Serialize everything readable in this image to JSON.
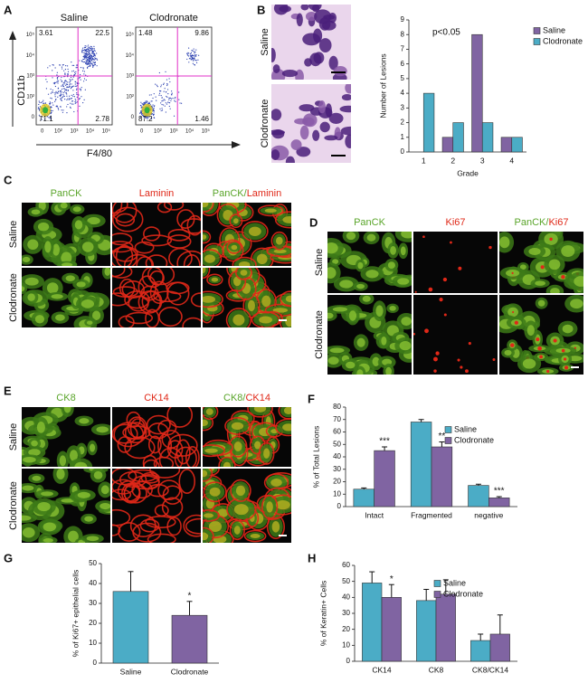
{
  "figure": {
    "A": {
      "panel": "A",
      "plots": [
        {
          "title": "Saline",
          "quadrants": [
            "3.61",
            "22.5",
            "71.1",
            "2.78"
          ]
        },
        {
          "title": "Clodronate",
          "quadrants": [
            "1.48",
            "9.86",
            "87.2",
            "1.46"
          ]
        }
      ],
      "y_label": "CD11b",
      "x_label": "F4/80",
      "ticks": [
        "0",
        "10²",
        "10³",
        "10⁴",
        "10⁵"
      ]
    },
    "B": {
      "panel": "B",
      "rows": [
        "Saline",
        "Clodronate"
      ]
    },
    "C": {
      "panel": "C",
      "columns": [
        "PanCK",
        "Laminin"
      ],
      "merged": [
        "PanCK/",
        "Laminin"
      ],
      "rows": [
        "Saline",
        "Clodronate"
      ]
    },
    "D": {
      "panel": "D",
      "columns": [
        "PanCK",
        "Ki67"
      ],
      "merged": [
        "PanCK/",
        "Ki67"
      ],
      "rows": [
        "Saline",
        "Clodronate"
      ]
    },
    "E": {
      "panel": "E",
      "columns": [
        "CK8",
        "CK14"
      ],
      "merged": [
        "CK8/",
        "CK14"
      ],
      "rows": [
        "Saline",
        "Clodronate"
      ]
    }
  },
  "chart_data": [
    {
      "type": "bar",
      "categories": [
        "1",
        "2",
        "3",
        "4"
      ],
      "series": [
        {
          "name": "Saline",
          "color": "#8064a2",
          "values": [
            0,
            1,
            8,
            1
          ]
        },
        {
          "name": "Clodronate",
          "color": "#4bacc6",
          "values": [
            4,
            2,
            2,
            1
          ]
        }
      ],
      "ylim": [
        0,
        9
      ],
      "yticks": [
        0,
        1,
        2,
        3,
        4,
        5,
        6,
        7,
        8,
        9
      ],
      "x_label": "Grade",
      "y_label": "Number of Lesions",
      "note": "p<0.05",
      "legend": "upper right"
    },
    {
      "type": "bar",
      "panel": "F",
      "categories": [
        "Intact",
        "Fragmented",
        "negative"
      ],
      "series": [
        {
          "name": "Saline",
          "color": "#4bacc6",
          "values": [
            14,
            68,
            17
          ],
          "errors": [
            1,
            2,
            1
          ]
        },
        {
          "name": "Clodronate",
          "color": "#8064a2",
          "values": [
            45,
            48,
            7
          ],
          "errors": [
            3,
            4,
            1
          ]
        }
      ],
      "ylim": [
        0,
        80
      ],
      "yticks": [
        0,
        10,
        20,
        30,
        40,
        50,
        60,
        70,
        80
      ],
      "y_label": "% of Total Lesions",
      "annotations": [
        {
          "text": "***",
          "category": "Intact",
          "series": "Clodronate"
        },
        {
          "text": "**",
          "category": "Fragmented",
          "series": "Clodronate"
        },
        {
          "text": "***",
          "category": "negative",
          "series": "Clodronate"
        }
      ],
      "legend": "upper right"
    },
    {
      "type": "bar",
      "panel": "G",
      "categories": [
        "Saline",
        "Clodronate"
      ],
      "values": [
        36,
        24
      ],
      "errors": [
        10,
        7
      ],
      "colors": [
        "#4bacc6",
        "#8064a2"
      ],
      "ylim": [
        0,
        50
      ],
      "yticks": [
        0,
        10,
        20,
        30,
        40,
        50
      ],
      "y_label": "% of  Ki67+ epithelial cells",
      "annotations": [
        {
          "text": "*",
          "category": "Clodronate"
        }
      ]
    },
    {
      "type": "bar",
      "panel": "H",
      "categories": [
        "CK14",
        "CK8",
        "CK8/CK14"
      ],
      "series": [
        {
          "name": "Saline",
          "color": "#4bacc6",
          "values": [
            49,
            38,
            13
          ],
          "errors": [
            7,
            7,
            4
          ]
        },
        {
          "name": "Clodronate",
          "color": "#8064a2",
          "values": [
            40,
            42,
            17
          ],
          "errors": [
            8,
            9,
            12
          ]
        }
      ],
      "ylim": [
        0,
        60
      ],
      "yticks": [
        0,
        10,
        20,
        30,
        40,
        50,
        60
      ],
      "y_label": "% of Keratin+ Cells",
      "annotations": [
        {
          "text": "*",
          "category": "CK14",
          "series": "Clodronate"
        }
      ],
      "legend": "upper right"
    }
  ]
}
